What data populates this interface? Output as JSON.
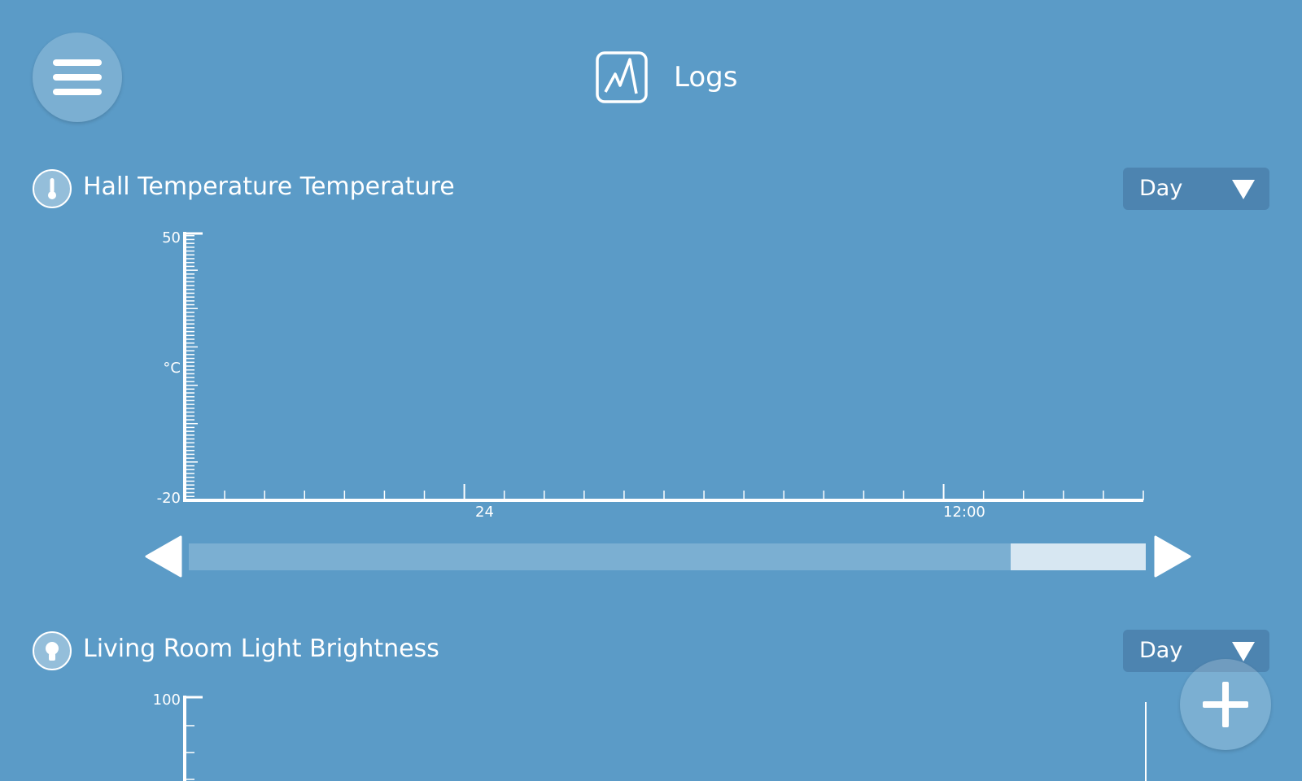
{
  "header": {
    "title": "Logs",
    "icon": "chart-icon"
  },
  "menu": {
    "icon": "hamburger-menu-icon"
  },
  "fab": {
    "icon": "plus-icon"
  },
  "charts": [
    {
      "title": "Hall Temperature Temperature",
      "device_icon": "thermometer-icon",
      "period": "Day",
      "y_max": "50",
      "y_min": "-20",
      "y_unit": "°C",
      "x_labels": [
        "24",
        "12:00"
      ]
    },
    {
      "title": "Living Room Light Brightness",
      "device_icon": "lightbulb-icon",
      "period": "Day",
      "y_max": "100"
    }
  ],
  "scrollbar": {
    "visible_fraction": 0.14
  },
  "chart_data": [
    {
      "type": "line",
      "title": "Hall Temperature Temperature",
      "ylabel": "°C",
      "ylim": [
        -20,
        50
      ],
      "x_tick_labels": [
        "24",
        "12:00"
      ],
      "series": []
    },
    {
      "type": "line",
      "title": "Living Room Light Brightness",
      "ylim_max": 100,
      "series": []
    }
  ]
}
